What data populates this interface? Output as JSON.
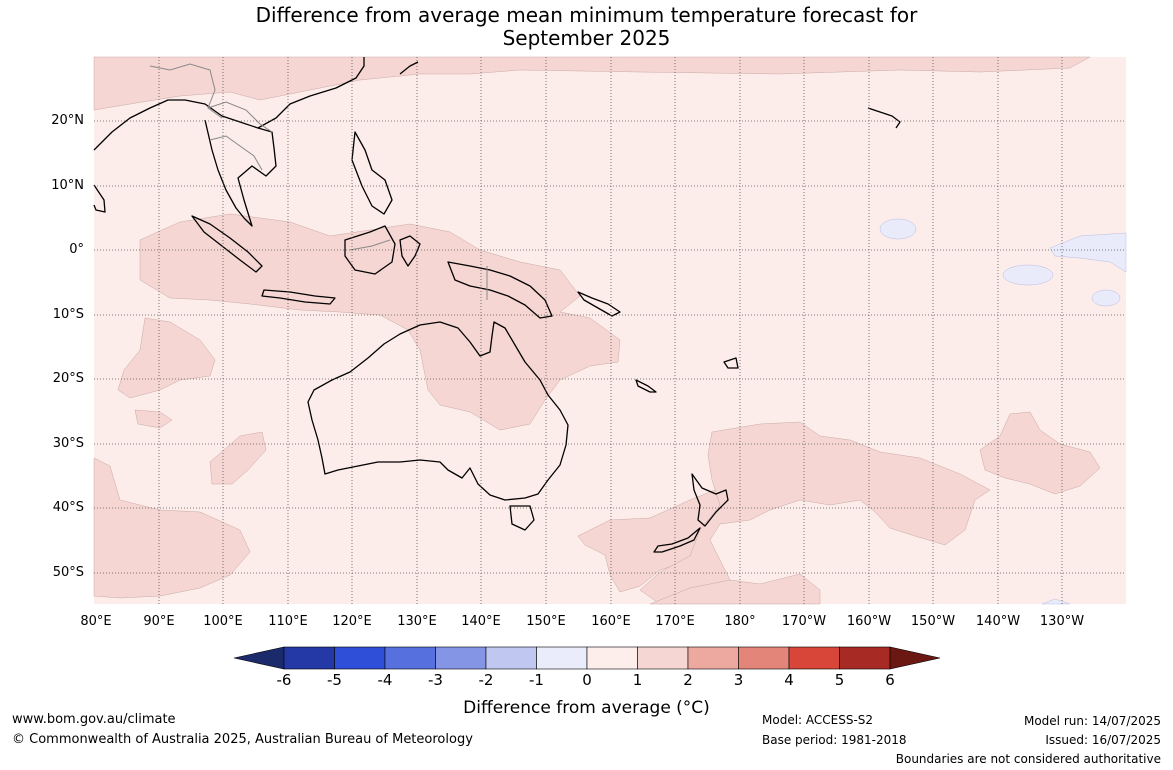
{
  "title": {
    "line1": "Difference from average mean minimum temperature forecast for",
    "line2": "September 2025"
  },
  "map": {
    "region": "Australasia and Western Pacific",
    "lat_labels": [
      "20°N",
      "10°N",
      "0°",
      "10°S",
      "20°S",
      "30°S",
      "40°S",
      "50°S"
    ],
    "lon_labels": [
      "80°E",
      "90°E",
      "100°E",
      "110°E",
      "120°E",
      "130°E",
      "140°E",
      "150°E",
      "160°E",
      "170°E",
      "180°",
      "170°W",
      "160°W",
      "150°W",
      "140°W",
      "130°W"
    ],
    "background_category": "0 to 1",
    "colors": {
      "ocean_0_1": "#fcecea",
      "warm_1_2": "#f6d6d3",
      "cool_m1_0": "#e9ebfb",
      "coast": "#000000",
      "borders": "#888888",
      "grid": "#555555"
    }
  },
  "colorbar": {
    "title": "Difference from average (°C)",
    "ticks": [
      "-6",
      "-5",
      "-4",
      "-3",
      "-2",
      "-1",
      "0",
      "1",
      "2",
      "3",
      "4",
      "5",
      "6"
    ],
    "colors": [
      "#1b2a6b",
      "#2539a6",
      "#2f4fd8",
      "#5670de",
      "#8495e6",
      "#c0c8f2",
      "#eaecfb",
      "#fdeeec",
      "#f6d6d3",
      "#eda9a0",
      "#e4857a",
      "#d8463a",
      "#a82a24",
      "#6b1812"
    ]
  },
  "footer": {
    "website": "www.bom.gov.au/climate",
    "copyright": "© Commonwealth of Australia 2025, Australian Bureau of Meteorology",
    "model": "Model: ACCESS-S2",
    "base_period": "Base period: 1981-2018",
    "model_run": "Model run: 14/07/2025",
    "issued": "Issued: 16/07/2025",
    "disclaimer": "Boundaries are not considered authoritative"
  }
}
